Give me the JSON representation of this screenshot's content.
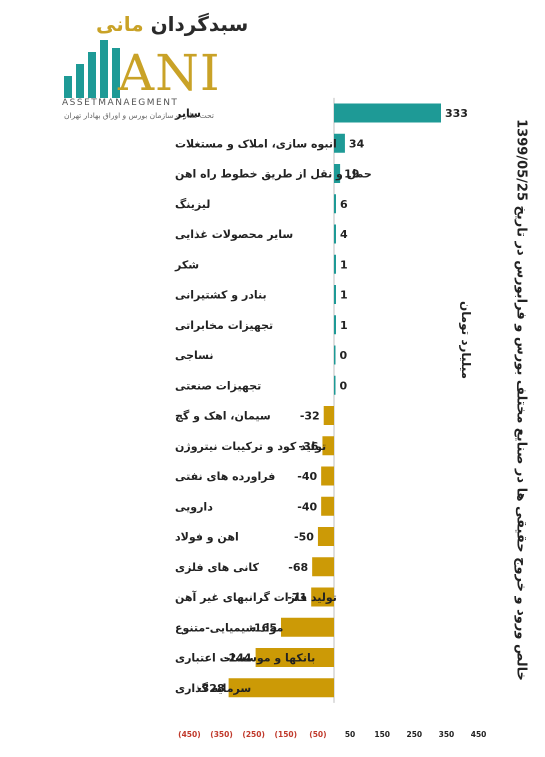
{
  "logo": {
    "brand_fa_main": "سبدگردان",
    "brand_fa_accent": "مانی",
    "brand_latin": "ANI",
    "subtitle_en": "ASSETMANAEGMENT",
    "subtitle_fa": "تحت نظارت سازمان بورس و اوراق بهادار تهران",
    "colors": {
      "teal": "#1e9a96",
      "gold": "#c9a227"
    }
  },
  "title": "خالص ورود و خروج حقیقی ها در صنایع مختلف بورس و فرابورس در تاریخ 1399/05/25",
  "unit_label": "میلیارد تومان",
  "chart_data": {
    "type": "bar",
    "orientation": "horizontal",
    "categories": [
      "سایر",
      "انبوه سازی، املاک و مستغلات",
      "حمل و نقل از طریق خطوط راه اهن",
      "لیزینگ",
      "سایر محصولات غذایی",
      "شکر",
      "بنادر و کشتیرانی",
      "تجهیزات مخابراتی",
      "نساجی",
      "تجهیزات صنعتی",
      "سیمان، اهک و گچ",
      "تولید کود و ترکیبات نیتروژن",
      "فراورده های نفتی",
      "دارویی",
      "اهن و فولاد",
      "کانی های فلزی",
      "تولید فلزات گرانبهای غیر آهن",
      "مواد شیمیایی-متنوع",
      "بانکها و موسسات اعتباری",
      "سرمایه گذاری"
    ],
    "values": [
      333,
      34,
      19,
      6,
      4,
      1,
      1,
      1,
      0,
      0,
      -32,
      -36,
      -40,
      -40,
      -50,
      -68,
      -71,
      -165,
      -244,
      -328
    ],
    "value_labels": [
      "333",
      "34",
      "19",
      "6",
      "4",
      "1",
      "1",
      "1",
      "0",
      "0",
      "-32",
      "-36",
      "-40",
      "-40",
      "-50",
      "-68",
      "-71",
      "-165",
      "-244",
      "-328"
    ],
    "x_ticks": [
      -450,
      -350,
      -250,
      -150,
      -50,
      50,
      150,
      250,
      350,
      450
    ],
    "x_tick_labels": [
      "(450)",
      "(350)",
      "(250)",
      "(150)",
      "(50)",
      "50",
      "150",
      "250",
      "350",
      "450"
    ],
    "xlim": [
      -450,
      450
    ],
    "grid": false,
    "legend": "none",
    "colors": {
      "positive": "#1e9a96",
      "negative": "#cc9a06",
      "negative_tick": "#c0392b",
      "positive_tick": "#222222"
    }
  }
}
